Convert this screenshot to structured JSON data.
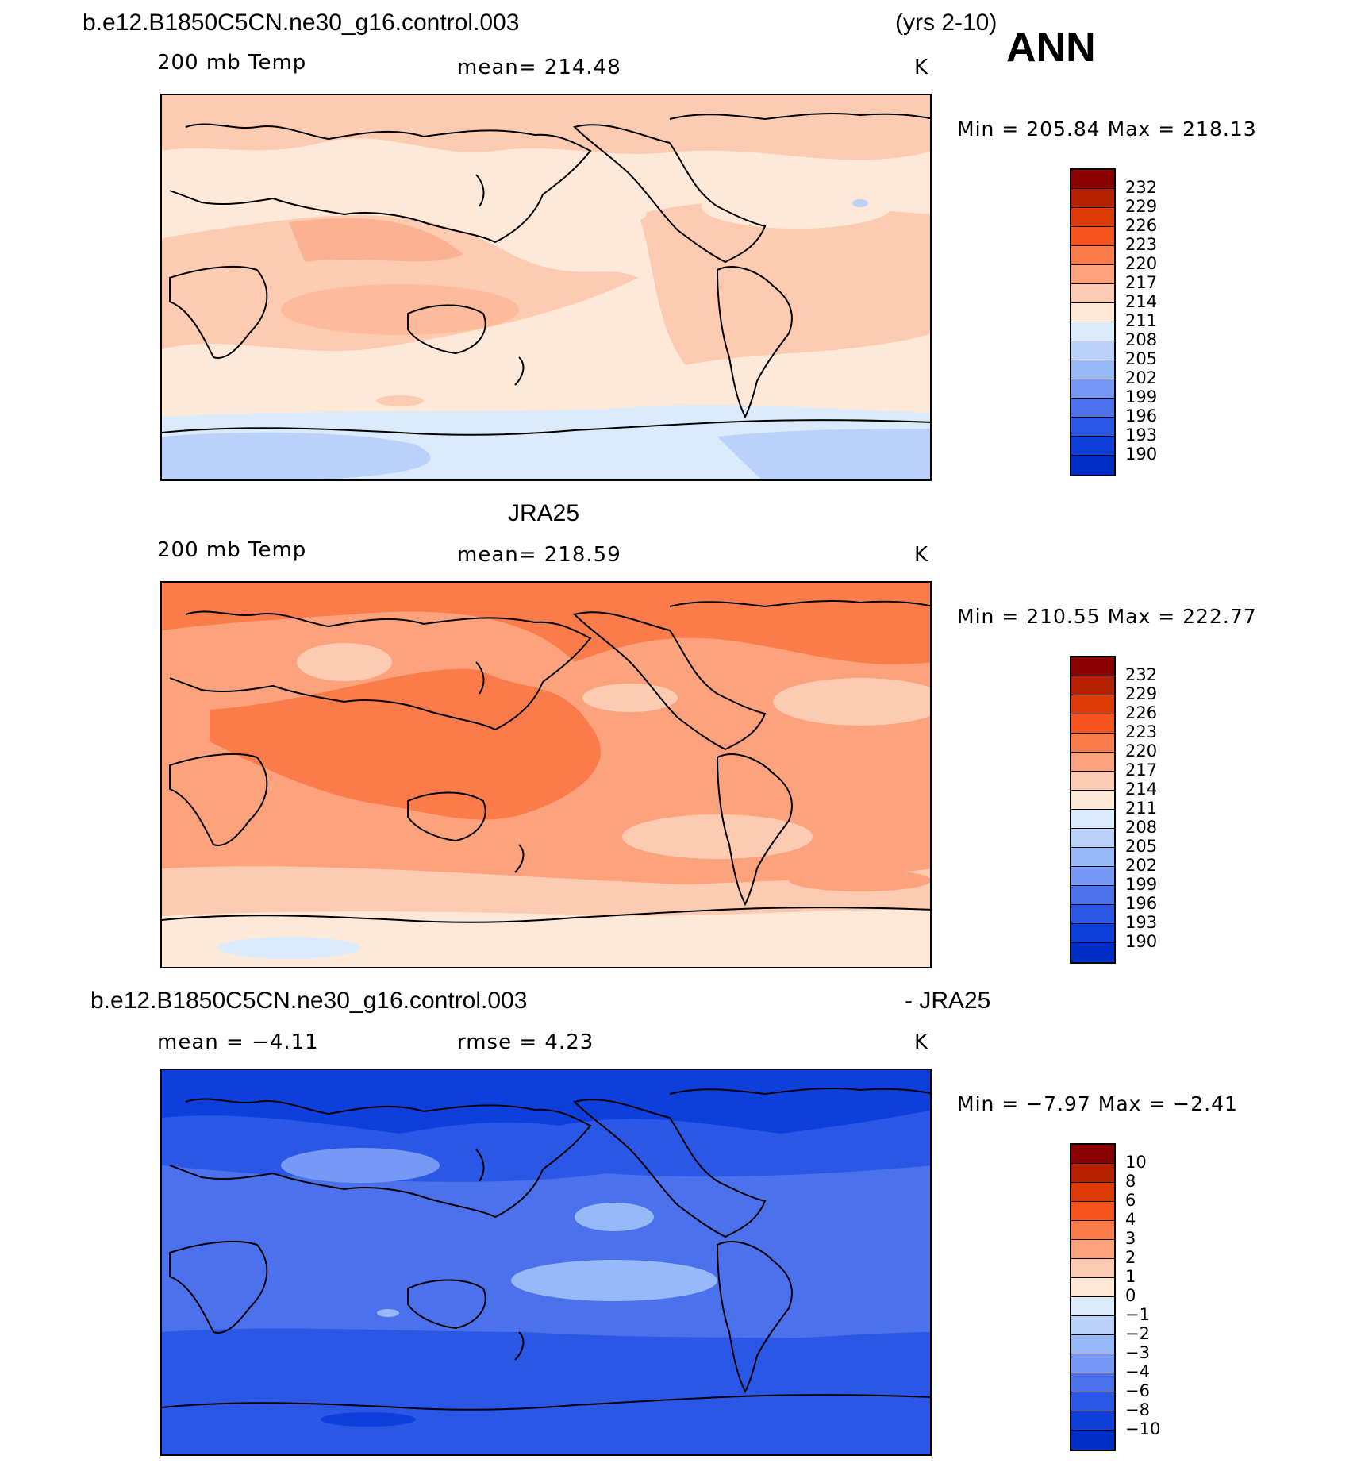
{
  "header": {
    "case": "b.e12.B1850C5CN.ne30_g16.control.003",
    "years": "(yrs 2-10)",
    "season": "ANN"
  },
  "panel1": {
    "title": "b.e12.B1850C5CN.ne30_g16.control.003",
    "field": "200 mb Temp",
    "stat": "mean=  214.48",
    "units": "K",
    "minmax": "Min  =  205.84  Max  =  218.13"
  },
  "panel2": {
    "title": "JRA25",
    "field": "200 mb Temp",
    "stat": "mean=  218.59",
    "units": "K",
    "minmax": "Min  =  210.55  Max  =  222.77"
  },
  "panel3": {
    "title_left": "b.e12.B1850C5CN.ne30_g16.control.003",
    "title_right": "- JRA25",
    "stat_mean": "mean  =    −4.11",
    "stat_rmse": "rmse  =     4.23",
    "units": "K",
    "minmax": "Min  =    −7.97  Max  =   −2.41"
  },
  "colorbar_abs": {
    "colors": [
      "#8b0000",
      "#b52100",
      "#dd3a06",
      "#f8541e",
      "#fb7c4a",
      "#fca27d",
      "#fdcbb1",
      "#fee9d8",
      "#dcebfb",
      "#bad2fa",
      "#98b9f7",
      "#7599f4",
      "#4b72ec",
      "#2a57e6",
      "#0d3fdc",
      "#002fc8",
      "#0019a0",
      "#000880"
    ],
    "labels": [
      "232",
      "229",
      "226",
      "223",
      "220",
      "217",
      "214",
      "211",
      "208",
      "205",
      "202",
      "199",
      "196",
      "193",
      "190"
    ]
  },
  "colorbar_diff": {
    "colors": [
      "#8b0000",
      "#b52100",
      "#dd3a06",
      "#f8541e",
      "#fb7c4a",
      "#fca27d",
      "#fdcbb1",
      "#fee9d8",
      "#dcebfb",
      "#bad2fa",
      "#98b9f7",
      "#7599f4",
      "#4b72ec",
      "#2a57e6",
      "#0d3fdc",
      "#002fc8",
      "#0019a0",
      "#000880"
    ],
    "labels": [
      "10",
      "8",
      "6",
      "4",
      "3",
      "2",
      "1",
      "0",
      "−1",
      "−2",
      "−3",
      "−4",
      "−6",
      "−8",
      "−10"
    ]
  }
}
